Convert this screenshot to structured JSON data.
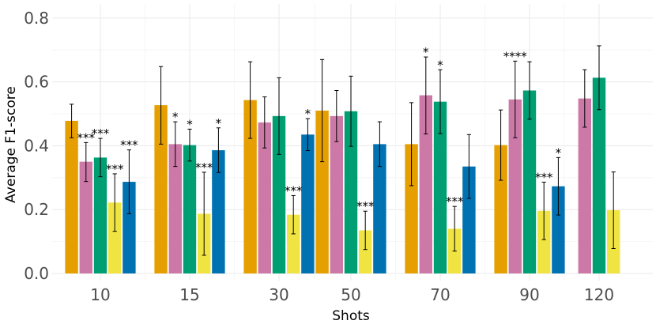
{
  "chart_data": {
    "type": "bar",
    "xlabel": "Shots",
    "ylabel": "Average F1-score",
    "ylim": [
      0,
      0.82
    ],
    "yticks": [
      0.0,
      0.2,
      0.4,
      0.6,
      0.8
    ],
    "ytick_labels": [
      "0.0",
      "0.2",
      "0.4",
      "0.6",
      "0.8"
    ],
    "categories": [
      "10",
      "15",
      "30",
      "50",
      "70",
      "90",
      "120"
    ],
    "grid": true,
    "legend": "none",
    "series": [
      {
        "color": "#E69F00",
        "values": [
          0.478,
          0.527,
          0.543,
          0.51,
          0.405,
          0.402,
          null
        ],
        "err_low": [
          0.425,
          0.405,
          0.423,
          0.35,
          0.275,
          0.292,
          null
        ],
        "err_high": [
          0.53,
          0.648,
          0.663,
          0.67,
          0.535,
          0.512,
          null
        ],
        "annotations": [
          "",
          "",
          "",
          "",
          "",
          "",
          ""
        ]
      },
      {
        "color": "#CC79A7",
        "values": [
          0.35,
          0.405,
          0.473,
          0.493,
          0.558,
          0.545,
          0.548
        ],
        "err_low": [
          0.288,
          0.335,
          0.393,
          0.413,
          0.437,
          0.425,
          0.458
        ],
        "err_high": [
          0.41,
          0.475,
          0.553,
          0.573,
          0.678,
          0.665,
          0.638
        ],
        "annotations": [
          "***",
          "*",
          "",
          "",
          "*",
          "****",
          ""
        ]
      },
      {
        "color": "#009E73",
        "values": [
          0.363,
          0.402,
          0.493,
          0.508,
          0.538,
          0.573,
          0.613
        ],
        "err_low": [
          0.303,
          0.352,
          0.373,
          0.398,
          0.438,
          0.483,
          0.513
        ],
        "err_high": [
          0.423,
          0.452,
          0.613,
          0.618,
          0.638,
          0.663,
          0.713
        ],
        "annotations": [
          "***",
          "*",
          "",
          "",
          "*",
          "",
          ""
        ]
      },
      {
        "color": "#F0E442",
        "values": [
          0.222,
          0.187,
          0.184,
          0.135,
          0.14,
          0.196,
          0.198
        ],
        "err_low": [
          0.132,
          0.057,
          0.124,
          0.075,
          0.07,
          0.106,
          0.078
        ],
        "err_high": [
          0.312,
          0.317,
          0.244,
          0.195,
          0.21,
          0.286,
          0.318
        ],
        "annotations": [
          "***",
          "***",
          "***",
          "***",
          "***",
          "***",
          ""
        ]
      },
      {
        "color": "#0072B2",
        "values": [
          0.287,
          0.386,
          0.435,
          0.405,
          0.335,
          0.273,
          null
        ],
        "err_low": [
          0.187,
          0.316,
          0.385,
          0.335,
          0.235,
          0.183,
          null
        ],
        "err_high": [
          0.387,
          0.456,
          0.485,
          0.475,
          0.435,
          0.363,
          null
        ],
        "annotations": [
          "***",
          "*",
          "*",
          "",
          "",
          "*",
          ""
        ]
      }
    ]
  }
}
